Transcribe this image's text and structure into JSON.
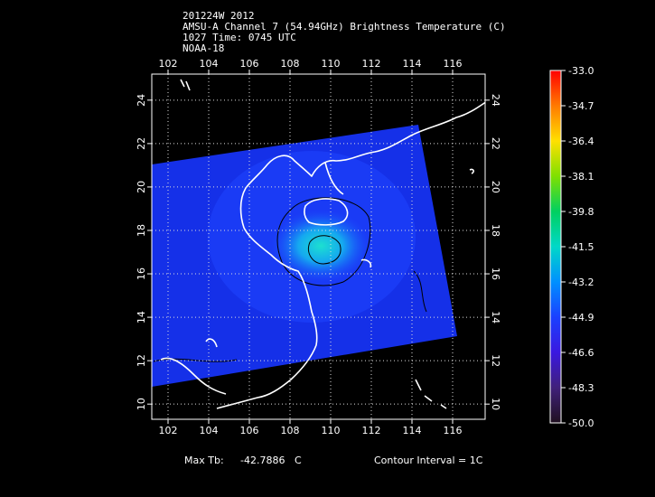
{
  "header": {
    "line1": "201224W 2012",
    "line2": "AMSU-A Channel 7 (54.94GHz) Brightness Temperature (C)",
    "line3": "1027 Time: 0745 UTC",
    "line4": "NOAA-18"
  },
  "map": {
    "lon_ticks": [
      "102",
      "104",
      "106",
      "108",
      "110",
      "112",
      "114",
      "116"
    ],
    "lat_ticks": [
      "10",
      "12",
      "14",
      "16",
      "18",
      "20",
      "22",
      "24"
    ],
    "lon_range": [
      101.2,
      117.6
    ],
    "lat_range": [
      9.3,
      25.2
    ],
    "gridlines": true,
    "swath_color": "#1530e8",
    "warm_core_color": "#19d6c8",
    "coastline_color": "#ffffff",
    "contour_color": "#000000"
  },
  "colorbar": {
    "labels": [
      "-33.0",
      "-34.7",
      "-36.4",
      "-38.1",
      "-39.8",
      "-41.5",
      "-43.2",
      "-44.9",
      "-46.6",
      "-48.3",
      "-50.0"
    ],
    "max": -33.0,
    "min": -50.0,
    "colors": [
      "#ff0000",
      "#ff7a00",
      "#ffe000",
      "#7fe000",
      "#00d060",
      "#00d8c8",
      "#0090ff",
      "#1a40ff",
      "#3a18e0",
      "#40207a",
      "#201020"
    ]
  },
  "footer": {
    "max_tb_label": "Max Tb:",
    "max_tb_value": "-42.7886",
    "max_tb_unit": "C",
    "contour_interval": "Contour Interval = 1C"
  }
}
